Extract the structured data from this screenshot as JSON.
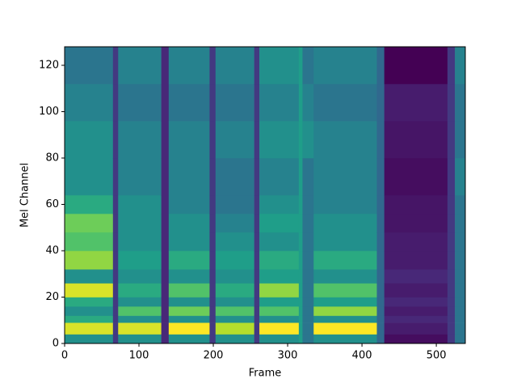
{
  "chart_data": {
    "type": "heatmap",
    "colormap": "viridis",
    "xlabel": "Frame",
    "ylabel": "Mel Channel",
    "xlim": [
      0,
      539
    ],
    "ylim": [
      0,
      128
    ],
    "xticks": [
      0,
      100,
      200,
      300,
      400,
      500
    ],
    "yticks": [
      0,
      20,
      40,
      60,
      80,
      100,
      120
    ],
    "x": [
      0,
      65,
      72,
      130,
      140,
      195,
      203,
      255,
      262,
      315,
      320,
      335,
      420,
      430,
      515,
      525,
      539
    ],
    "y": [
      0,
      4,
      9,
      12,
      16,
      20,
      26,
      32,
      40,
      48,
      56,
      64,
      80,
      96,
      112,
      128
    ],
    "z": [
      [
        0.5,
        0.9,
        0.6,
        0.5,
        0.6,
        0.9,
        0.5,
        0.8,
        0.7,
        0.75,
        0.6,
        0.5,
        0.5,
        0.45,
        0.4
      ],
      [
        0.2,
        0.2,
        0.2,
        0.2,
        0.2,
        0.2,
        0.2,
        0.2,
        0.2,
        0.2,
        0.2,
        0.2,
        0.2,
        0.2,
        0.2
      ],
      [
        0.5,
        0.9,
        0.5,
        0.7,
        0.5,
        0.6,
        0.5,
        0.55,
        0.5,
        0.5,
        0.5,
        0.45,
        0.45,
        0.4,
        0.45
      ],
      [
        0.15,
        0.15,
        0.15,
        0.15,
        0.15,
        0.15,
        0.15,
        0.15,
        0.15,
        0.15,
        0.15,
        0.15,
        0.15,
        0.15,
        0.15
      ],
      [
        0.5,
        0.95,
        0.5,
        0.75,
        0.5,
        0.7,
        0.5,
        0.6,
        0.5,
        0.5,
        0.45,
        0.45,
        0.45,
        0.4,
        0.45
      ],
      [
        0.2,
        0.2,
        0.2,
        0.2,
        0.2,
        0.2,
        0.2,
        0.2,
        0.2,
        0.2,
        0.2,
        0.2,
        0.2,
        0.2,
        0.2
      ],
      [
        0.5,
        0.85,
        0.5,
        0.7,
        0.5,
        0.6,
        0.5,
        0.55,
        0.5,
        0.45,
        0.4,
        0.4,
        0.45,
        0.4,
        0.45
      ],
      [
        0.2,
        0.2,
        0.2,
        0.2,
        0.2,
        0.2,
        0.2,
        0.2,
        0.2,
        0.2,
        0.2,
        0.2,
        0.2,
        0.2,
        0.2
      ],
      [
        0.5,
        0.95,
        0.5,
        0.7,
        0.55,
        0.8,
        0.55,
        0.6,
        0.5,
        0.55,
        0.5,
        0.45,
        0.5,
        0.45,
        0.5
      ],
      [
        0.55,
        0.55,
        0.55,
        0.55,
        0.55,
        0.55,
        0.55,
        0.55,
        0.55,
        0.55,
        0.55,
        0.55,
        0.55,
        0.55,
        0.55
      ],
      [
        0.4,
        0.4,
        0.4,
        0.4,
        0.4,
        0.4,
        0.4,
        0.4,
        0.4,
        0.4,
        0.4,
        0.4,
        0.5,
        0.45,
        0.4
      ],
      [
        0.5,
        0.95,
        0.5,
        0.8,
        0.55,
        0.7,
        0.5,
        0.6,
        0.5,
        0.5,
        0.45,
        0.45,
        0.45,
        0.4,
        0.45
      ],
      [
        0.35,
        0.35,
        0.35,
        0.35,
        0.35,
        0.35,
        0.35,
        0.35,
        0.35,
        0.35,
        0.35,
        0.35,
        0.35,
        0.35,
        0.35
      ],
      [
        0.08,
        0.12,
        0.15,
        0.12,
        0.15,
        0.12,
        0.15,
        0.12,
        0.12,
        0.1,
        0.1,
        0.08,
        0.1,
        0.12,
        0.05
      ],
      [
        0.2,
        0.2,
        0.2,
        0.2,
        0.2,
        0.2,
        0.2,
        0.2,
        0.2,
        0.2,
        0.2,
        0.2,
        0.2,
        0.2,
        0.2
      ],
      [
        0.4,
        0.4,
        0.4,
        0.4,
        0.4,
        0.4,
        0.4,
        0.4,
        0.4,
        0.4,
        0.4,
        0.45,
        0.4,
        0.4,
        0.45
      ]
    ]
  }
}
